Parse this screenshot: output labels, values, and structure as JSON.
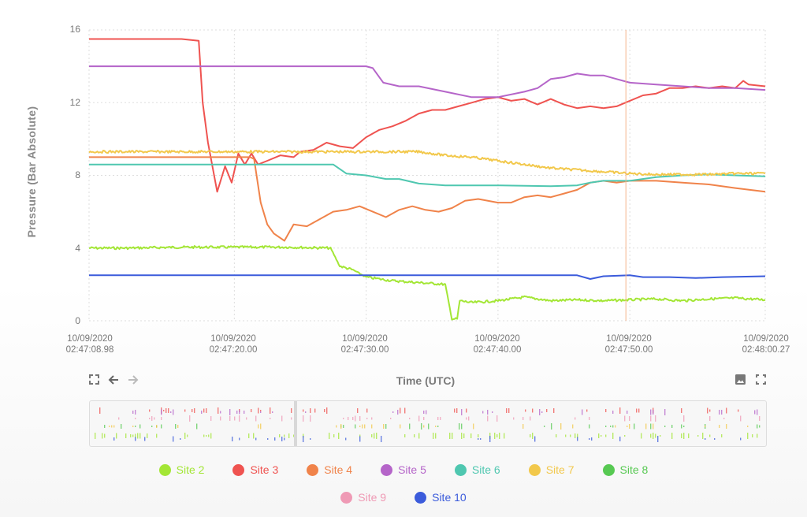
{
  "chart_data": {
    "type": "line",
    "title": "",
    "xlabel": "Time (UTC)",
    "ylabel": "Pressure (Bar Absolute)",
    "ylim": [
      0,
      16
    ],
    "yticks": [
      "0",
      "4",
      "8",
      "12",
      "16"
    ],
    "xlim_seconds": [
      8.98,
      60.27
    ],
    "xticks": [
      {
        "date": "10/09/2020",
        "time": "02:47:08.98"
      },
      {
        "date": "10/09/2020",
        "time": "02:47:20.00"
      },
      {
        "date": "10/09/2020",
        "time": "02:47:30.00"
      },
      {
        "date": "10/09/2020",
        "time": "02:47:40.00"
      },
      {
        "date": "10/09/2020",
        "time": "02:47:50.00"
      },
      {
        "date": "10/09/2020",
        "time": "02:48:00.27"
      }
    ],
    "grid": true,
    "cursor_time_seconds": 49.7,
    "legend_position": "bottom",
    "x_unit": "seconds after 02:47:00",
    "series": [
      {
        "name": "Site 2",
        "color": "#a3e635",
        "noisy": true,
        "points": [
          [
            8.98,
            4.0
          ],
          [
            12,
            4.0
          ],
          [
            16,
            4.05
          ],
          [
            20,
            4.05
          ],
          [
            24,
            4.05
          ],
          [
            27.3,
            4.0
          ],
          [
            28,
            3.0
          ],
          [
            29,
            2.8
          ],
          [
            30,
            2.4
          ],
          [
            32,
            2.2
          ],
          [
            34,
            2.1
          ],
          [
            36,
            2.0
          ],
          [
            36.5,
            0.1
          ],
          [
            36.9,
            0.1
          ],
          [
            37.1,
            1.1
          ],
          [
            38,
            1.0
          ],
          [
            40,
            1.1
          ],
          [
            42,
            1.3
          ],
          [
            44,
            1.1
          ],
          [
            46,
            1.15
          ],
          [
            48,
            1.1
          ],
          [
            50,
            1.15
          ],
          [
            52,
            1.2
          ],
          [
            54,
            1.1
          ],
          [
            56,
            1.2
          ],
          [
            58,
            1.25
          ],
          [
            60.27,
            1.15
          ]
        ]
      },
      {
        "name": "Site 3",
        "color": "#ef5350",
        "points": [
          [
            8.98,
            15.5
          ],
          [
            12,
            15.5
          ],
          [
            16,
            15.5
          ],
          [
            17.3,
            15.4
          ],
          [
            17.6,
            12
          ],
          [
            18,
            9.8
          ],
          [
            18.7,
            7.1
          ],
          [
            19.3,
            8.5
          ],
          [
            19.8,
            7.6
          ],
          [
            20.3,
            9.2
          ],
          [
            20.8,
            8.6
          ],
          [
            21.3,
            9.2
          ],
          [
            21.8,
            8.6
          ],
          [
            22.5,
            8.8
          ],
          [
            23.5,
            9.1
          ],
          [
            24.5,
            9.0
          ],
          [
            25,
            9.3
          ],
          [
            26,
            9.4
          ],
          [
            27,
            9.8
          ],
          [
            28,
            9.6
          ],
          [
            29,
            9.5
          ],
          [
            30,
            10.1
          ],
          [
            31,
            10.5
          ],
          [
            32,
            10.7
          ],
          [
            33,
            11.0
          ],
          [
            34,
            11.4
          ],
          [
            35,
            11.6
          ],
          [
            36,
            11.6
          ],
          [
            37,
            11.8
          ],
          [
            38,
            12.0
          ],
          [
            39,
            12.2
          ],
          [
            40,
            12.3
          ],
          [
            41,
            12.1
          ],
          [
            42,
            12.2
          ],
          [
            43,
            11.9
          ],
          [
            44,
            12.2
          ],
          [
            45,
            11.9
          ],
          [
            46,
            11.7
          ],
          [
            47,
            11.8
          ],
          [
            48,
            11.7
          ],
          [
            49,
            11.8
          ],
          [
            50,
            12.1
          ],
          [
            51,
            12.4
          ],
          [
            52,
            12.5
          ],
          [
            53,
            12.8
          ],
          [
            54,
            12.8
          ],
          [
            55,
            12.9
          ],
          [
            56,
            12.8
          ],
          [
            57,
            12.9
          ],
          [
            58,
            12.8
          ],
          [
            58.6,
            13.2
          ],
          [
            59,
            13.0
          ],
          [
            60.27,
            12.9
          ]
        ]
      },
      {
        "name": "Site 4",
        "color": "#f0834a",
        "points": [
          [
            8.98,
            9.0
          ],
          [
            16,
            9.0
          ],
          [
            20,
            9.0
          ],
          [
            21.2,
            9.0
          ],
          [
            21.5,
            8.9
          ],
          [
            22,
            6.5
          ],
          [
            22.5,
            5.3
          ],
          [
            23,
            4.8
          ],
          [
            23.8,
            4.4
          ],
          [
            24.5,
            5.3
          ],
          [
            25.5,
            5.2
          ],
          [
            26.5,
            5.6
          ],
          [
            27.5,
            6.0
          ],
          [
            28.5,
            6.1
          ],
          [
            29.5,
            6.3
          ],
          [
            30.5,
            6.0
          ],
          [
            31.5,
            5.7
          ],
          [
            32.5,
            6.1
          ],
          [
            33.5,
            6.3
          ],
          [
            34.5,
            6.1
          ],
          [
            35.5,
            6.0
          ],
          [
            36.5,
            6.2
          ],
          [
            37.5,
            6.6
          ],
          [
            38.5,
            6.7
          ],
          [
            40,
            6.5
          ],
          [
            41,
            6.5
          ],
          [
            42,
            6.8
          ],
          [
            43,
            6.9
          ],
          [
            44,
            6.8
          ],
          [
            45,
            7.0
          ],
          [
            46,
            7.2
          ],
          [
            47,
            7.6
          ],
          [
            48,
            7.7
          ],
          [
            49,
            7.6
          ],
          [
            50,
            7.7
          ],
          [
            52,
            7.7
          ],
          [
            54,
            7.6
          ],
          [
            56,
            7.5
          ],
          [
            58,
            7.3
          ],
          [
            60.27,
            7.1
          ]
        ]
      },
      {
        "name": "Site 5",
        "color": "#b565c9",
        "points": [
          [
            8.98,
            14.0
          ],
          [
            20,
            14.0
          ],
          [
            30,
            14.0
          ],
          [
            30.5,
            13.9
          ],
          [
            31.3,
            13.1
          ],
          [
            32.5,
            12.9
          ],
          [
            34,
            12.9
          ],
          [
            36,
            12.6
          ],
          [
            38,
            12.3
          ],
          [
            40,
            12.3
          ],
          [
            42,
            12.6
          ],
          [
            43,
            12.8
          ],
          [
            44,
            13.3
          ],
          [
            45,
            13.4
          ],
          [
            46,
            13.6
          ],
          [
            47,
            13.5
          ],
          [
            48,
            13.5
          ],
          [
            49,
            13.3
          ],
          [
            50,
            13.1
          ],
          [
            52,
            13.0
          ],
          [
            54,
            12.9
          ],
          [
            56,
            12.8
          ],
          [
            58,
            12.8
          ],
          [
            60.27,
            12.7
          ]
        ]
      },
      {
        "name": "Site 6",
        "color": "#4fc7b0",
        "points": [
          [
            8.98,
            8.6
          ],
          [
            20,
            8.6
          ],
          [
            26,
            8.6
          ],
          [
            27.5,
            8.6
          ],
          [
            28.5,
            8.1
          ],
          [
            30,
            8.0
          ],
          [
            31.5,
            7.8
          ],
          [
            32.5,
            7.8
          ],
          [
            34,
            7.55
          ],
          [
            36,
            7.45
          ],
          [
            40,
            7.45
          ],
          [
            44,
            7.4
          ],
          [
            46,
            7.45
          ],
          [
            47,
            7.6
          ],
          [
            48,
            7.7
          ],
          [
            50,
            7.7
          ],
          [
            52,
            7.9
          ],
          [
            54,
            8.0
          ],
          [
            56,
            8.05
          ],
          [
            58,
            8.0
          ],
          [
            60.27,
            7.95
          ]
        ]
      },
      {
        "name": "Site 7",
        "color": "#f2c84b",
        "noisy": true,
        "points": [
          [
            8.98,
            9.3
          ],
          [
            20,
            9.3
          ],
          [
            30,
            9.3
          ],
          [
            34,
            9.3
          ],
          [
            36,
            9.1
          ],
          [
            38,
            9.0
          ],
          [
            40,
            8.8
          ],
          [
            42,
            8.6
          ],
          [
            44,
            8.4
          ],
          [
            46,
            8.3
          ],
          [
            48,
            8.2
          ],
          [
            50,
            8.1
          ],
          [
            52,
            8.05
          ],
          [
            54,
            8.05
          ],
          [
            56,
            8.05
          ],
          [
            58,
            8.1
          ],
          [
            60.27,
            8.1
          ]
        ]
      },
      {
        "name": "Site 8",
        "color": "#57c952",
        "points": []
      },
      {
        "name": "Site 9",
        "color": "#ef9ab5",
        "points": []
      },
      {
        "name": "Site 10",
        "color": "#3b5bdb",
        "points": [
          [
            8.98,
            2.5
          ],
          [
            20,
            2.5
          ],
          [
            30,
            2.5
          ],
          [
            40,
            2.5
          ],
          [
            46,
            2.5
          ],
          [
            47,
            2.3
          ],
          [
            48,
            2.45
          ],
          [
            50,
            2.5
          ],
          [
            51,
            2.4
          ],
          [
            53,
            2.4
          ],
          [
            55,
            2.35
          ],
          [
            57,
            2.4
          ],
          [
            60.27,
            2.45
          ]
        ]
      }
    ]
  },
  "toolbar": {
    "reset_zoom_icon": "fit-screen-icon",
    "back_icon": "arrow-left-icon",
    "forward_icon": "arrow-right-icon",
    "export_image_icon": "image-icon",
    "fullscreen_icon": "fullscreen-icon"
  },
  "legend": {
    "row1": [
      {
        "label": "Site 2",
        "color": "#a3e635"
      },
      {
        "label": "Site 3",
        "color": "#ef5350"
      },
      {
        "label": "Site 4",
        "color": "#f0834a"
      },
      {
        "label": "Site 5",
        "color": "#b565c9"
      },
      {
        "label": "Site 6",
        "color": "#4fc7b0"
      },
      {
        "label": "Site 7",
        "color": "#f2c84b"
      },
      {
        "label": "Site 8",
        "color": "#57c952"
      }
    ],
    "row2": [
      {
        "label": "Site 9",
        "color": "#ef9ab5"
      },
      {
        "label": "Site 10",
        "color": "#3b5bdb"
      }
    ]
  }
}
